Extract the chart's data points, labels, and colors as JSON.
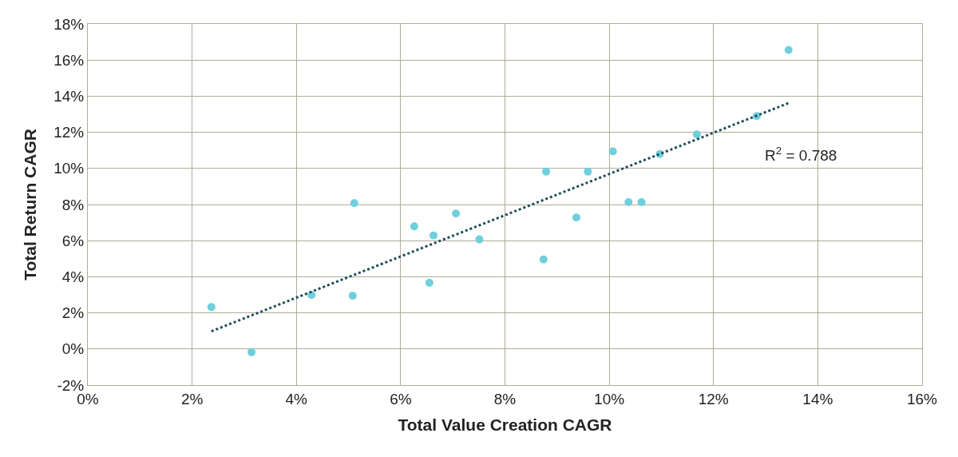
{
  "chart_data": {
    "type": "scatter",
    "xlabel": "Total Value Creation CAGR",
    "ylabel": "Total Return CAGR",
    "xlim": [
      0,
      16
    ],
    "xticks": [
      {
        "value": 0,
        "label": "0%"
      },
      {
        "value": 2,
        "label": "2%"
      },
      {
        "value": 4,
        "label": "4%"
      },
      {
        "value": 6,
        "label": "6%"
      },
      {
        "value": 8,
        "label": "8%"
      },
      {
        "value": 10,
        "label": "10%"
      },
      {
        "value": 12,
        "label": "12%"
      },
      {
        "value": 14,
        "label": "14%"
      },
      {
        "value": 16,
        "label": "16%"
      }
    ],
    "ylim": [
      -2,
      18
    ],
    "yticks": [
      {
        "value": -2,
        "label": "-2%"
      },
      {
        "value": 0,
        "label": "0%"
      },
      {
        "value": 2,
        "label": "2%"
      },
      {
        "value": 4,
        "label": "4%"
      },
      {
        "value": 6,
        "label": "6%"
      },
      {
        "value": 8,
        "label": "8%"
      },
      {
        "value": 10,
        "label": "10%"
      },
      {
        "value": 12,
        "label": "12%"
      },
      {
        "value": 14,
        "label": "14%"
      },
      {
        "value": 16,
        "label": "16%"
      },
      {
        "value": 18,
        "label": "18%"
      }
    ],
    "grid": true,
    "marker": "circle",
    "series": [
      {
        "color": "#6fd0dc",
        "x": [
          2.37,
          3.14,
          4.29,
          5.08,
          5.11,
          6.26,
          6.55,
          6.63,
          7.06,
          7.51,
          8.74,
          8.79,
          9.37,
          9.59,
          10.07,
          10.37,
          10.62,
          10.97,
          11.68,
          12.83,
          13.44
        ],
        "values": [
          2.32,
          -0.18,
          2.99,
          2.95,
          8.08,
          6.79,
          3.66,
          6.29,
          7.5,
          6.07,
          4.96,
          9.82,
          7.28,
          9.82,
          10.94,
          8.13,
          8.13,
          10.8,
          11.88,
          12.9,
          16.56
        ]
      },
      {
        "type": "line",
        "color": "#1f4e5a",
        "line_style": "dotted",
        "marker": "none",
        "x": [
          2.37,
          13.44
        ],
        "values": [
          0.98,
          13.62
        ]
      }
    ],
    "annotations": [
      "R$^{2}$ = 0.788"
    ]
  }
}
